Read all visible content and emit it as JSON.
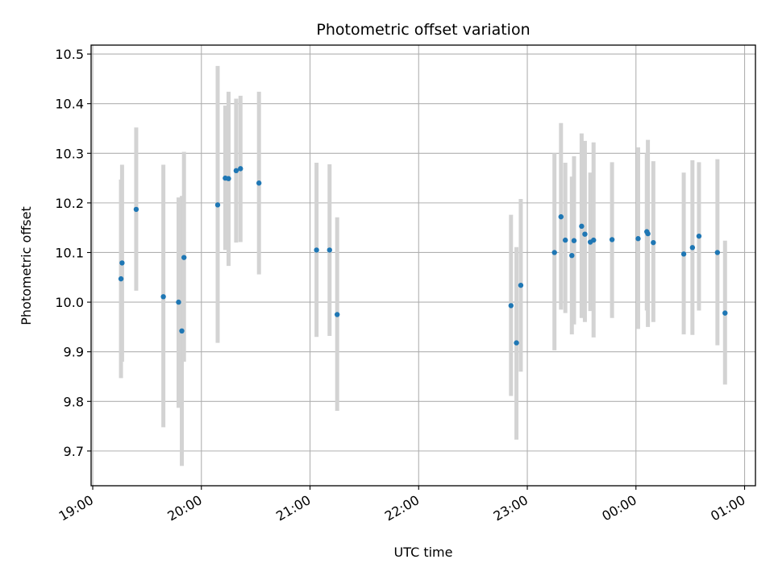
{
  "chart_data": {
    "type": "scatter",
    "title": "Photometric offset variation",
    "xlabel": "UTC time",
    "ylabel": "Photometric offset",
    "x_units": "hours of UTC time, continuing past midnight (24.0 = 00:00 of next day)",
    "xlim": [
      18.985,
      25.1
    ],
    "ylim": [
      9.63,
      10.518
    ],
    "x_ticks": [
      {
        "value": 19,
        "label": "19:00"
      },
      {
        "value": 20,
        "label": "20:00"
      },
      {
        "value": 21,
        "label": "21:00"
      },
      {
        "value": 22,
        "label": "22:00"
      },
      {
        "value": 23,
        "label": "23:00"
      },
      {
        "value": 24,
        "label": "00:00"
      },
      {
        "value": 25,
        "label": "01:00"
      }
    ],
    "y_ticks": [
      {
        "value": 9.7,
        "label": "9.7"
      },
      {
        "value": 9.8,
        "label": "9.8"
      },
      {
        "value": 9.9,
        "label": "9.9"
      },
      {
        "value": 10.0,
        "label": "10.0"
      },
      {
        "value": 10.1,
        "label": "10.1"
      },
      {
        "value": 10.2,
        "label": "10.2"
      },
      {
        "value": 10.3,
        "label": "10.3"
      },
      {
        "value": 10.4,
        "label": "10.4"
      },
      {
        "value": 10.5,
        "label": "10.5"
      }
    ],
    "grid": true,
    "marker_color": "#1f77b4",
    "errorbar_color": "#d3d3d3",
    "series": [
      {
        "points": [
          {
            "x": 19.26,
            "y": 10.047,
            "lo": 9.847,
            "hi": 10.247
          },
          {
            "x": 19.27,
            "y": 10.079,
            "lo": 9.88,
            "hi": 10.277
          },
          {
            "x": 19.4,
            "y": 10.187,
            "lo": 10.023,
            "hi": 10.352
          },
          {
            "x": 19.65,
            "y": 10.011,
            "lo": 9.748,
            "hi": 10.277
          },
          {
            "x": 19.79,
            "y": 10.0,
            "lo": 9.787,
            "hi": 10.211
          },
          {
            "x": 19.82,
            "y": 9.942,
            "lo": 9.67,
            "hi": 10.214
          },
          {
            "x": 19.84,
            "y": 10.09,
            "lo": 9.88,
            "hi": 10.303
          },
          {
            "x": 20.15,
            "y": 10.196,
            "lo": 9.918,
            "hi": 10.476
          },
          {
            "x": 20.22,
            "y": 10.25,
            "lo": 10.105,
            "hi": 10.396
          },
          {
            "x": 20.25,
            "y": 10.249,
            "lo": 10.073,
            "hi": 10.424
          },
          {
            "x": 20.32,
            "y": 10.265,
            "lo": 10.12,
            "hi": 10.41
          },
          {
            "x": 20.36,
            "y": 10.269,
            "lo": 10.121,
            "hi": 10.416
          },
          {
            "x": 20.53,
            "y": 10.24,
            "lo": 10.056,
            "hi": 10.424
          },
          {
            "x": 21.06,
            "y": 10.105,
            "lo": 9.93,
            "hi": 10.281
          },
          {
            "x": 21.18,
            "y": 10.105,
            "lo": 9.932,
            "hi": 10.278
          },
          {
            "x": 21.25,
            "y": 9.975,
            "lo": 9.781,
            "hi": 10.171
          },
          {
            "x": 22.85,
            "y": 9.993,
            "lo": 9.811,
            "hi": 10.176
          },
          {
            "x": 22.9,
            "y": 9.918,
            "lo": 9.723,
            "hi": 10.111
          },
          {
            "x": 22.94,
            "y": 10.034,
            "lo": 9.86,
            "hi": 10.208
          },
          {
            "x": 23.25,
            "y": 10.1,
            "lo": 9.903,
            "hi": 10.3
          },
          {
            "x": 23.31,
            "y": 10.172,
            "lo": 9.985,
            "hi": 10.361
          },
          {
            "x": 23.35,
            "y": 10.125,
            "lo": 9.978,
            "hi": 10.281
          },
          {
            "x": 23.41,
            "y": 10.094,
            "lo": 9.935,
            "hi": 10.253
          },
          {
            "x": 23.43,
            "y": 10.124,
            "lo": 9.955,
            "hi": 10.294
          },
          {
            "x": 23.5,
            "y": 10.153,
            "lo": 9.968,
            "hi": 10.34
          },
          {
            "x": 23.53,
            "y": 10.137,
            "lo": 9.96,
            "hi": 10.325
          },
          {
            "x": 23.58,
            "y": 10.121,
            "lo": 9.982,
            "hi": 10.261
          },
          {
            "x": 23.61,
            "y": 10.125,
            "lo": 9.929,
            "hi": 10.322
          },
          {
            "x": 23.78,
            "y": 10.126,
            "lo": 9.968,
            "hi": 10.282
          },
          {
            "x": 24.02,
            "y": 10.128,
            "lo": 9.946,
            "hi": 10.312
          },
          {
            "x": 24.1,
            "y": 10.142,
            "lo": 9.983,
            "hi": 10.3
          },
          {
            "x": 24.11,
            "y": 10.138,
            "lo": 9.95,
            "hi": 10.327
          },
          {
            "x": 24.16,
            "y": 10.12,
            "lo": 9.96,
            "hi": 10.284
          },
          {
            "x": 24.44,
            "y": 10.097,
            "lo": 9.935,
            "hi": 10.261
          },
          {
            "x": 24.52,
            "y": 10.11,
            "lo": 9.934,
            "hi": 10.286
          },
          {
            "x": 24.58,
            "y": 10.133,
            "lo": 9.983,
            "hi": 10.282
          },
          {
            "x": 24.75,
            "y": 10.1,
            "lo": 9.913,
            "hi": 10.288
          },
          {
            "x": 24.82,
            "y": 9.978,
            "lo": 9.834,
            "hi": 10.124
          }
        ]
      }
    ]
  }
}
